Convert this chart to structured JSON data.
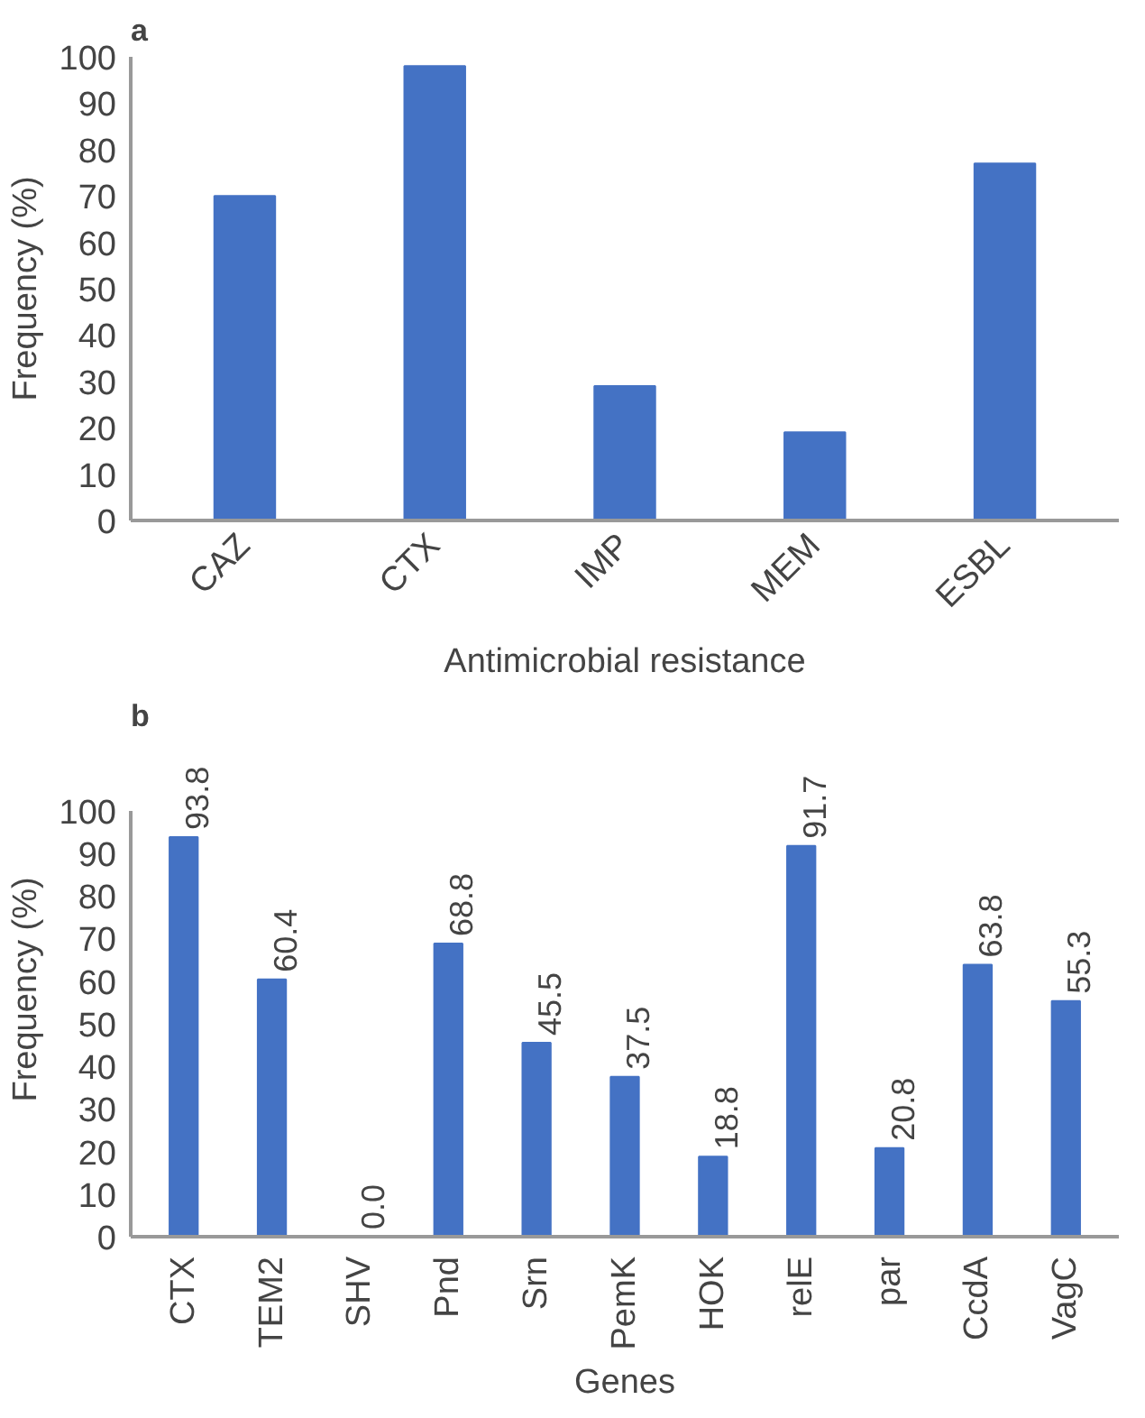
{
  "chart_data": [
    {
      "type": "bar",
      "title": "a",
      "xlabel": "Antimicrobial resistance",
      "ylabel": "Frequency (%)",
      "categories": [
        "CAZ",
        "CTX",
        "IMP",
        "MEM",
        "ESBL"
      ],
      "values": [
        70,
        98,
        29,
        19,
        77
      ],
      "color": "#4472c4",
      "ylim": [
        0,
        100
      ],
      "yticks": [
        0,
        10,
        20,
        30,
        40,
        50,
        60,
        70,
        80,
        90,
        100
      ],
      "grid": false
    },
    {
      "type": "bar",
      "title": "b",
      "xlabel": "Genes",
      "ylabel": "Frequency (%)",
      "categories": [
        "CTX",
        "TEM2",
        "SHV",
        "Pnd",
        "Srn",
        "PemK",
        "HOK",
        "relE",
        "par",
        "CcdA",
        "VagC"
      ],
      "values": [
        93.8,
        60.4,
        0.0,
        68.8,
        45.5,
        37.5,
        18.8,
        91.7,
        20.8,
        63.8,
        55.3
      ],
      "value_labels": [
        "93.8",
        "60.4",
        "0.0",
        "68.8",
        "45.5",
        "37.5",
        "18.8",
        "91.7",
        "20.8",
        "63.8",
        "55.3"
      ],
      "color": "#4472c4",
      "ylim": [
        0,
        100
      ],
      "yticks": [
        0,
        10,
        20,
        30,
        40,
        50,
        60,
        70,
        80,
        90,
        100
      ],
      "grid": false
    }
  ]
}
